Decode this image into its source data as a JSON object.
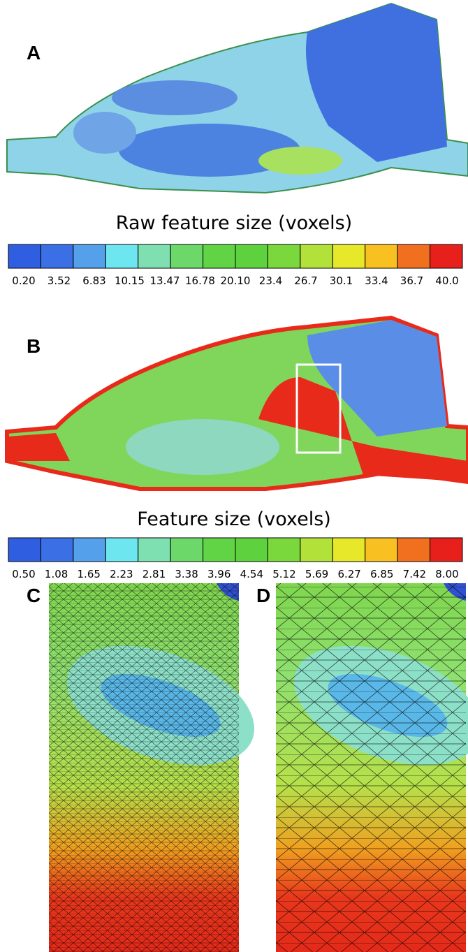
{
  "panels": [
    {
      "label": "A"
    },
    {
      "label": "B"
    },
    {
      "label": "C"
    },
    {
      "label": "D"
    }
  ],
  "colorbars": [
    {
      "title": "Raw feature size (voxels)",
      "labels": [
        "0.20",
        "3.52",
        "6.83",
        "10.15",
        "13.47",
        "16.78",
        "20.10",
        "23.4",
        "26.7",
        "30.1",
        "33.4",
        "36.7",
        "40.0"
      ]
    },
    {
      "title": "Feature size (voxels)",
      "labels": [
        "0.50",
        "1.08",
        "1.65",
        "2.23",
        "2.81",
        "3.38",
        "3.96",
        "4.54",
        "5.12",
        "5.69",
        "6.27",
        "6.85",
        "7.42",
        "8.00"
      ]
    }
  ]
}
